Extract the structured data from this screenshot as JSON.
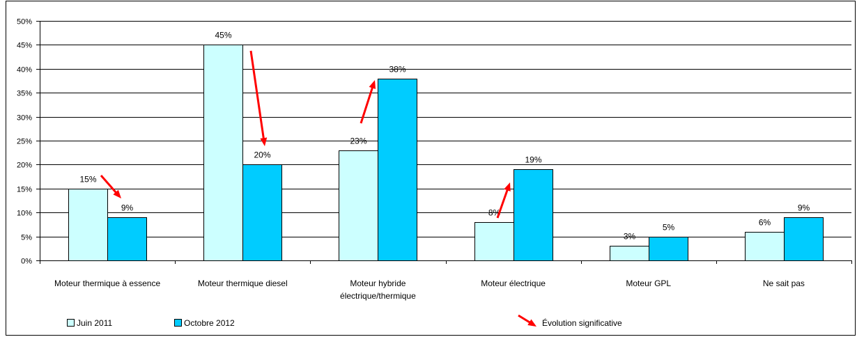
{
  "chart_data": {
    "type": "bar",
    "categories": [
      "Moteur thermique à essence",
      "Moteur thermique diesel",
      "Moteur hybride électrique/thermique",
      "Moteur électrique",
      "Moteur GPL",
      "Ne sait pas"
    ],
    "series": [
      {
        "name": "Juin 2011",
        "values": [
          15,
          45,
          23,
          8,
          3,
          6
        ],
        "labels": [
          "15%",
          "45%",
          "23%",
          "8%",
          "3%",
          "6%"
        ],
        "color": "#CCFFFF"
      },
      {
        "name": "Octobre 2012",
        "values": [
          9,
          20,
          38,
          19,
          5,
          9
        ],
        "labels": [
          "9%",
          "20%",
          "38%",
          "19%",
          "5%",
          "9%"
        ],
        "color": "#00CCFF"
      }
    ],
    "unit": "%",
    "ylim": [
      0,
      50
    ],
    "yticks": [
      0,
      5,
      10,
      15,
      20,
      25,
      30,
      35,
      40,
      45,
      50
    ],
    "ytick_labels": [
      "0%",
      "5%",
      "10%",
      "15%",
      "20%",
      "25%",
      "30%",
      "35%",
      "40%",
      "45%",
      "50%"
    ],
    "grid": true,
    "legend_position": "bottom",
    "annotation": {
      "label": "Évolution significative",
      "color": "#FF0000",
      "significant": [
        true,
        true,
        true,
        true,
        false,
        false
      ]
    }
  }
}
